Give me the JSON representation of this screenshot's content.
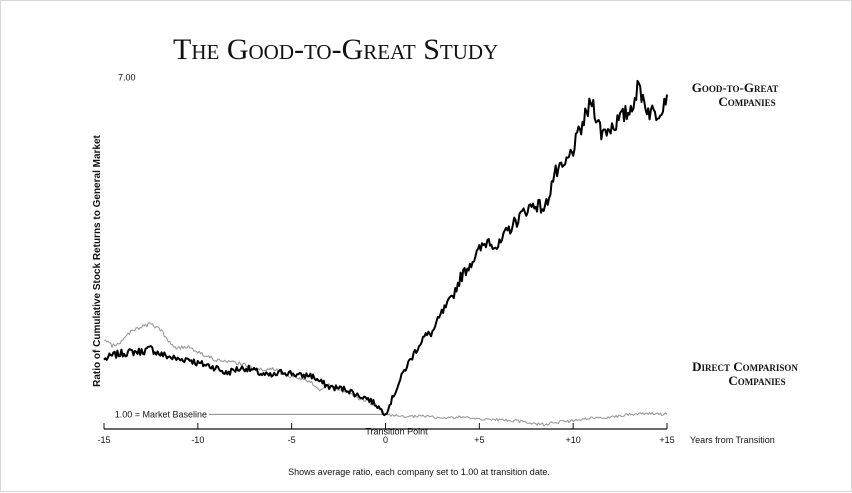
{
  "chart_data": {
    "type": "line",
    "title": "The Good-to-Great Study",
    "xlabel": "Years from Transition",
    "ylabel": "Ratio of Cumulative Stock Returns to General Market",
    "footnote": "Shows average ratio, each company set to 1.00 at transition date.",
    "xlim": [
      -15,
      15
    ],
    "ylim": [
      0,
      7.5
    ],
    "x_ticks": [
      {
        "value": -15,
        "label": "-15"
      },
      {
        "value": -10,
        "label": "-10"
      },
      {
        "value": -5,
        "label": "-5"
      },
      {
        "value": 0,
        "label": "0"
      },
      {
        "value": 5,
        "label": "+5"
      },
      {
        "value": 10,
        "label": "+10"
      },
      {
        "value": 15,
        "label": "+15"
      }
    ],
    "y_tick_labels": [
      {
        "value": 7.0,
        "label": "7.00"
      }
    ],
    "baseline": {
      "value": 1.0,
      "label": "1.00 = Market Baseline"
    },
    "annotations": [
      {
        "x": 0,
        "y": 1.0,
        "text": "Transition Point"
      }
    ],
    "series": [
      {
        "name": "Good-to-Great Companies",
        "label_lines": [
          "Good-to-Great",
          "Companies"
        ],
        "color": "#000000",
        "points": [
          [
            -15,
            2.0
          ],
          [
            -14.5,
            2.08
          ],
          [
            -14,
            2.12
          ],
          [
            -13.5,
            2.14
          ],
          [
            -13,
            2.15
          ],
          [
            -12.5,
            2.2
          ],
          [
            -12,
            2.1
          ],
          [
            -11.5,
            2.05
          ],
          [
            -11,
            2.0
          ],
          [
            -10.5,
            2.02
          ],
          [
            -10,
            1.93
          ],
          [
            -9.5,
            1.9
          ],
          [
            -9,
            1.85
          ],
          [
            -8.5,
            1.75
          ],
          [
            -8,
            1.82
          ],
          [
            -7.5,
            1.85
          ],
          [
            -7,
            1.8
          ],
          [
            -6.5,
            1.72
          ],
          [
            -6,
            1.7
          ],
          [
            -5.5,
            1.78
          ],
          [
            -5,
            1.75
          ],
          [
            -4.5,
            1.7
          ],
          [
            -4,
            1.72
          ],
          [
            -3.5,
            1.6
          ],
          [
            -3,
            1.5
          ],
          [
            -2.5,
            1.48
          ],
          [
            -2,
            1.45
          ],
          [
            -1.5,
            1.35
          ],
          [
            -1,
            1.3
          ],
          [
            -0.5,
            1.18
          ],
          [
            0,
            1.0
          ],
          [
            0.5,
            1.4
          ],
          [
            1,
            1.8
          ],
          [
            1.5,
            2.1
          ],
          [
            2,
            2.4
          ],
          [
            2.5,
            2.5
          ],
          [
            3,
            2.85
          ],
          [
            3.5,
            3.1
          ],
          [
            4,
            3.5
          ],
          [
            4.5,
            3.75
          ],
          [
            5,
            4.0
          ],
          [
            5.5,
            4.2
          ],
          [
            6,
            4.05
          ],
          [
            6.5,
            4.35
          ],
          [
            7,
            4.55
          ],
          [
            7.5,
            4.75
          ],
          [
            8,
            4.85
          ],
          [
            8.5,
            4.75
          ],
          [
            9,
            5.4
          ],
          [
            9.5,
            5.5
          ],
          [
            10,
            5.85
          ],
          [
            10.5,
            6.3
          ],
          [
            11,
            6.75
          ],
          [
            11.5,
            6.15
          ],
          [
            12,
            6.25
          ],
          [
            12.5,
            6.4
          ],
          [
            13,
            6.55
          ],
          [
            13.5,
            7.0
          ],
          [
            14,
            6.55
          ],
          [
            14.5,
            6.5
          ],
          [
            15,
            6.85
          ]
        ]
      },
      {
        "name": "Direct Comparison Companies",
        "label_lines": [
          "Direct Comparison",
          "Companies"
        ],
        "color": "#9a9a9a",
        "points": [
          [
            -15,
            2.35
          ],
          [
            -14.5,
            2.25
          ],
          [
            -14,
            2.35
          ],
          [
            -13.5,
            2.55
          ],
          [
            -13,
            2.6
          ],
          [
            -12.5,
            2.65
          ],
          [
            -12,
            2.55
          ],
          [
            -11.5,
            2.3
          ],
          [
            -11,
            2.2
          ],
          [
            -10.5,
            2.25
          ],
          [
            -10,
            2.15
          ],
          [
            -9.5,
            2.05
          ],
          [
            -9,
            2.0
          ],
          [
            -8.5,
            1.95
          ],
          [
            -8,
            1.95
          ],
          [
            -7.5,
            1.9
          ],
          [
            -7,
            1.85
          ],
          [
            -6.5,
            1.8
          ],
          [
            -6,
            1.85
          ],
          [
            -5.5,
            1.75
          ],
          [
            -5,
            1.7
          ],
          [
            -4.5,
            1.65
          ],
          [
            -4,
            1.6
          ],
          [
            -3.5,
            1.45
          ],
          [
            -3,
            1.55
          ],
          [
            -2.5,
            1.45
          ],
          [
            -2,
            1.4
          ],
          [
            -1.5,
            1.3
          ],
          [
            -1,
            1.25
          ],
          [
            -0.5,
            1.15
          ],
          [
            0,
            1.0
          ],
          [
            1,
            0.95
          ],
          [
            2,
            0.97
          ],
          [
            3,
            0.93
          ],
          [
            4,
            0.95
          ],
          [
            5,
            0.92
          ],
          [
            6,
            0.9
          ],
          [
            7,
            0.88
          ],
          [
            7.5,
            0.85
          ],
          [
            8,
            0.83
          ],
          [
            8.5,
            0.82
          ],
          [
            9,
            0.85
          ],
          [
            10,
            0.88
          ],
          [
            11,
            0.93
          ],
          [
            12,
            0.95
          ],
          [
            13,
            1.0
          ],
          [
            14,
            1.02
          ],
          [
            15,
            1.0
          ]
        ]
      }
    ],
    "grid": false,
    "legend": "direct-labels-right"
  }
}
